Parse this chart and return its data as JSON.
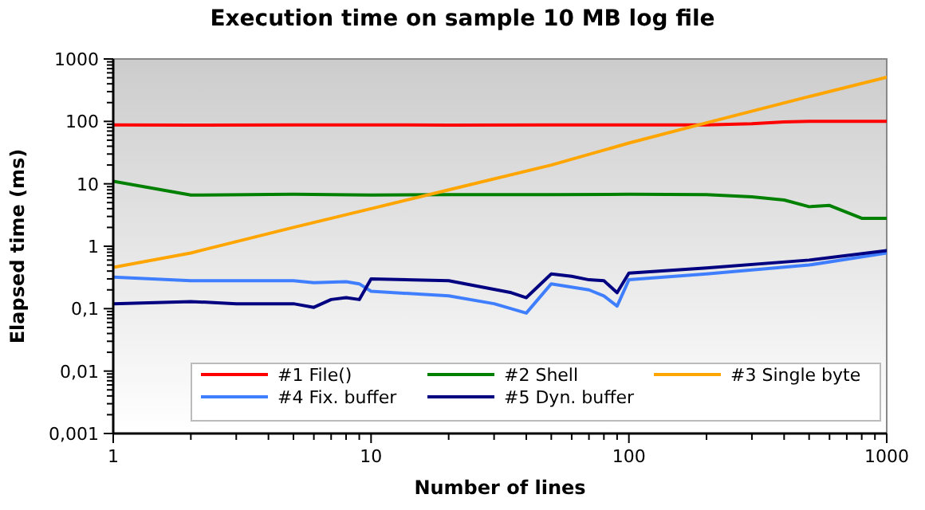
{
  "chart_data": {
    "type": "line",
    "title": "Execution time on sample 10 MB log file",
    "xlabel": "Number of lines",
    "ylabel": "Elapsed time (ms)",
    "log": "xy",
    "grid": false,
    "legend": "bottom right",
    "line_style": "solid",
    "marker": "none",
    "xlim": [
      1,
      1000
    ],
    "ylim": [
      0.001,
      1000
    ],
    "xticks": [
      1,
      {
        "value": 2,
        "label": null
      },
      {
        "value": 3,
        "label": null
      },
      {
        "value": 4,
        "label": null
      },
      {
        "value": 5,
        "label": null
      },
      {
        "value": 6,
        "label": null
      },
      {
        "value": 7,
        "label": null
      },
      {
        "value": 8,
        "label": null
      },
      {
        "value": 9,
        "label": null
      },
      10,
      {
        "value": 20,
        "label": null
      },
      {
        "value": 30,
        "label": null
      },
      {
        "value": 40,
        "label": null
      },
      {
        "value": 50,
        "label": null
      },
      {
        "value": 60,
        "label": null
      },
      {
        "value": 70,
        "label": null
      },
      {
        "value": 80,
        "label": null
      },
      {
        "value": 90,
        "label": null
      },
      100,
      {
        "value": 200,
        "label": null
      },
      {
        "value": 300,
        "label": null
      },
      {
        "value": 400,
        "label": null
      },
      {
        "value": 500,
        "label": null
      },
      {
        "value": 600,
        "label": null
      },
      {
        "value": 700,
        "label": null
      },
      {
        "value": 800,
        "label": null
      },
      {
        "value": 900,
        "label": null
      },
      1000
    ],
    "yticks": [
      {
        "value": 0.001,
        "label": "0,001"
      },
      {
        "value": 0.002,
        "label": null
      },
      {
        "value": 0.003,
        "label": null
      },
      {
        "value": 0.004,
        "label": null
      },
      {
        "value": 0.005,
        "label": null
      },
      {
        "value": 0.006,
        "label": null
      },
      {
        "value": 0.007,
        "label": null
      },
      {
        "value": 0.008,
        "label": null
      },
      {
        "value": 0.009,
        "label": null
      },
      {
        "value": 0.01,
        "label": "0,01"
      },
      {
        "value": 0.02,
        "label": null
      },
      {
        "value": 0.03,
        "label": null
      },
      {
        "value": 0.04,
        "label": null
      },
      {
        "value": 0.05,
        "label": null
      },
      {
        "value": 0.06,
        "label": null
      },
      {
        "value": 0.07,
        "label": null
      },
      {
        "value": 0.08,
        "label": null
      },
      {
        "value": 0.09,
        "label": null
      },
      {
        "value": 0.1,
        "label": "0,1"
      },
      {
        "value": 0.2,
        "label": null
      },
      {
        "value": 0.3,
        "label": null
      },
      {
        "value": 0.4,
        "label": null
      },
      {
        "value": 0.5,
        "label": null
      },
      {
        "value": 0.6,
        "label": null
      },
      {
        "value": 0.7,
        "label": null
      },
      {
        "value": 0.8,
        "label": null
      },
      {
        "value": 0.9,
        "label": null
      },
      1,
      {
        "value": 2,
        "label": null
      },
      {
        "value": 3,
        "label": null
      },
      {
        "value": 4,
        "label": null
      },
      {
        "value": 5,
        "label": null
      },
      {
        "value": 6,
        "label": null
      },
      {
        "value": 7,
        "label": null
      },
      {
        "value": 8,
        "label": null
      },
      {
        "value": 9,
        "label": null
      },
      10,
      {
        "value": 20,
        "label": null
      },
      {
        "value": 30,
        "label": null
      },
      {
        "value": 40,
        "label": null
      },
      {
        "value": 50,
        "label": null
      },
      {
        "value": 60,
        "label": null
      },
      {
        "value": 70,
        "label": null
      },
      {
        "value": 80,
        "label": null
      },
      {
        "value": 90,
        "label": null
      },
      100,
      {
        "value": 200,
        "label": null
      },
      {
        "value": 300,
        "label": null
      },
      {
        "value": 400,
        "label": null
      },
      {
        "value": 500,
        "label": null
      },
      {
        "value": 600,
        "label": null
      },
      {
        "value": 700,
        "label": null
      },
      {
        "value": 800,
        "label": null
      },
      {
        "value": 900,
        "label": null
      },
      1000
    ],
    "series": [
      {
        "name": "#1 File()",
        "color": "#ff0000",
        "x": [
          1,
          2,
          5,
          10,
          20,
          50,
          100,
          200,
          300,
          400,
          500,
          700,
          1000
        ],
        "values": [
          88,
          87,
          88,
          88,
          87,
          88,
          88,
          88,
          92,
          98,
          100,
          100,
          100
        ]
      },
      {
        "name": "#2 Shell",
        "color": "#008000",
        "x": [
          1,
          2,
          5,
          10,
          20,
          50,
          100,
          200,
          300,
          400,
          500,
          600,
          800,
          1000
        ],
        "values": [
          11,
          6.6,
          6.8,
          6.6,
          6.7,
          6.7,
          6.8,
          6.7,
          6.2,
          5.5,
          4.3,
          4.5,
          2.8,
          2.8
        ]
      },
      {
        "name": "#3 Single byte",
        "color": "#ffa500",
        "x": [
          1,
          2,
          5,
          10,
          20,
          50,
          100,
          200,
          500,
          1000
        ],
        "values": [
          0.46,
          0.78,
          2,
          4,
          8,
          20,
          45,
          95,
          250,
          510
        ]
      },
      {
        "name": "#4 Fix. buffer",
        "color": "#3f7fff",
        "x": [
          1,
          2,
          5,
          6,
          8,
          9,
          10,
          20,
          30,
          40,
          50,
          70,
          80,
          90,
          100,
          200,
          500,
          1000
        ],
        "values": [
          0.32,
          0.28,
          0.28,
          0.26,
          0.27,
          0.25,
          0.19,
          0.16,
          0.12,
          0.085,
          0.25,
          0.2,
          0.16,
          0.11,
          0.29,
          0.36,
          0.5,
          0.78
        ]
      },
      {
        "name": "#5 Dyn. buffer",
        "color": "#000080",
        "x": [
          1,
          2,
          3,
          5,
          6,
          7,
          8,
          9,
          10,
          20,
          35,
          40,
          50,
          60,
          70,
          80,
          90,
          100,
          200,
          500,
          1000
        ],
        "values": [
          0.12,
          0.13,
          0.12,
          0.12,
          0.105,
          0.14,
          0.15,
          0.14,
          0.3,
          0.28,
          0.18,
          0.15,
          0.36,
          0.33,
          0.29,
          0.28,
          0.18,
          0.37,
          0.45,
          0.6,
          0.85
        ]
      }
    ]
  }
}
